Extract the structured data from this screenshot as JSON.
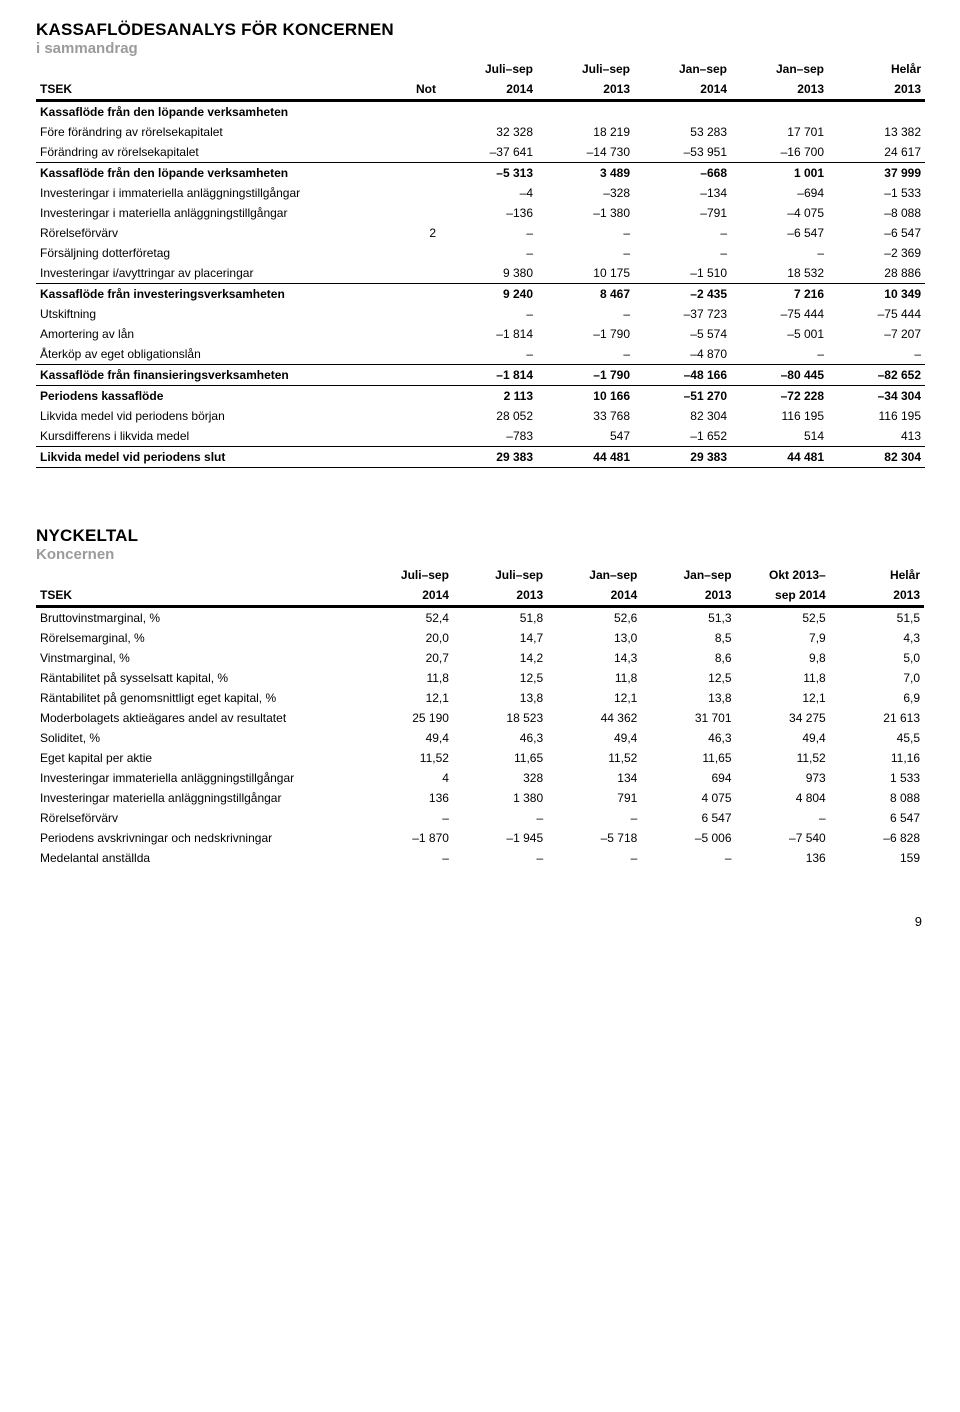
{
  "page_number": "9",
  "colors": {
    "text": "#000000",
    "muted": "#9b9b9b",
    "background": "#ffffff",
    "rule": "#000000"
  },
  "table1": {
    "title": "KASSAFLÖDESANALYS FÖR KONCERNEN",
    "subtitle": "i sammandrag",
    "header": {
      "tsek": "TSEK",
      "not": "Not",
      "c1a": "Juli–sep",
      "c1b": "2014",
      "c2a": "Juli–sep",
      "c2b": "2013",
      "c3a": "Jan–sep",
      "c3b": "2014",
      "c4a": "Jan–sep",
      "c4b": "2013",
      "c5a": "Helår",
      "c5b": "2013"
    },
    "rows": [
      {
        "label": "Kassaflöde från den löpande verksamheten",
        "not": "",
        "v": [
          "",
          "",
          "",
          "",
          ""
        ],
        "bold": true,
        "rule": "none"
      },
      {
        "label": "Före förändring av rörelsekapitalet",
        "not": "",
        "v": [
          "32 328",
          "18 219",
          "53 283",
          "17 701",
          "13 382"
        ],
        "bold": false,
        "rule": "none"
      },
      {
        "label": "Förändring av rörelsekapitalet",
        "not": "",
        "v": [
          "–37 641",
          "–14 730",
          "–53 951",
          "–16 700",
          "24 617"
        ],
        "bold": false,
        "rule": "thin"
      },
      {
        "label": "Kassaflöde från den löpande verksamheten",
        "not": "",
        "v": [
          "–5 313",
          "3 489",
          "–668",
          "1 001",
          "37 999"
        ],
        "bold": true,
        "rule": "none"
      },
      {
        "label": "Investeringar i immateriella anläggningstillgångar",
        "not": "",
        "v": [
          "–4",
          "–328",
          "–134",
          "–694",
          "–1 533"
        ],
        "bold": false,
        "rule": "none"
      },
      {
        "label": "Investeringar i materiella anläggningstillgångar",
        "not": "",
        "v": [
          "–136",
          "–1 380",
          "–791",
          "–4 075",
          "–8 088"
        ],
        "bold": false,
        "rule": "none"
      },
      {
        "label": "Rörelseförvärv",
        "not": "2",
        "v": [
          "–",
          "–",
          "–",
          "–6 547",
          "–6 547"
        ],
        "bold": false,
        "rule": "none"
      },
      {
        "label": "Försäljning dotterföretag",
        "not": "",
        "v": [
          "–",
          "–",
          "–",
          "–",
          "–2 369"
        ],
        "bold": false,
        "rule": "none"
      },
      {
        "label": "Investeringar i/avyttringar av placeringar",
        "not": "",
        "v": [
          "9 380",
          "10 175",
          "–1 510",
          "18 532",
          "28 886"
        ],
        "bold": false,
        "rule": "thin"
      },
      {
        "label": "Kassaflöde från investeringsverksamheten",
        "not": "",
        "v": [
          "9 240",
          "8 467",
          "–2 435",
          "7 216",
          "10 349"
        ],
        "bold": true,
        "rule": "none"
      },
      {
        "label": "Utskiftning",
        "not": "",
        "v": [
          "–",
          "–",
          "–37 723",
          "–75 444",
          "–75 444"
        ],
        "bold": false,
        "rule": "none"
      },
      {
        "label": "Amortering av lån",
        "not": "",
        "v": [
          "–1 814",
          "–1 790",
          "–5 574",
          "–5 001",
          "–7 207"
        ],
        "bold": false,
        "rule": "none"
      },
      {
        "label": "Återköp av eget obligationslån",
        "not": "",
        "v": [
          "–",
          "–",
          "–4 870",
          "–",
          "–"
        ],
        "bold": false,
        "rule": "thin"
      },
      {
        "label": "Kassaflöde från finansieringsverksamheten",
        "not": "",
        "v": [
          "–1 814",
          "–1 790",
          "–48 166",
          "–80 445",
          "–82 652"
        ],
        "bold": true,
        "rule": "thin"
      },
      {
        "label": "Periodens kassaflöde",
        "not": "",
        "v": [
          "2 113",
          "10 166",
          "–51 270",
          "–72 228",
          "–34 304"
        ],
        "bold": true,
        "rule": "none"
      },
      {
        "label": "Likvida medel vid periodens början",
        "not": "",
        "v": [
          "28 052",
          "33 768",
          "82 304",
          "116 195",
          "116 195"
        ],
        "bold": false,
        "rule": "none"
      },
      {
        "label": "Kursdifferens i likvida medel",
        "not": "",
        "v": [
          "–783",
          "547",
          "–1 652",
          "514",
          "413"
        ],
        "bold": false,
        "rule": "thin"
      },
      {
        "label": "Likvida medel vid periodens slut",
        "not": "",
        "v": [
          "29 383",
          "44 481",
          "29 383",
          "44 481",
          "82 304"
        ],
        "bold": true,
        "rule": "thin"
      }
    ]
  },
  "table2": {
    "title": "NYCKELTAL",
    "subtitle": "Koncernen",
    "header": {
      "tsek": "TSEK",
      "c1a": "Juli–sep",
      "c1b": "2014",
      "c2a": "Juli–sep",
      "c2b": "2013",
      "c3a": "Jan–sep",
      "c3b": "2014",
      "c4a": "Jan–sep",
      "c4b": "2013",
      "c5a": "Okt 2013–",
      "c5b": "sep 2014",
      "c6a": "Helår",
      "c6b": "2013"
    },
    "rows": [
      {
        "label": "Bruttovinstmarginal, %",
        "v": [
          "52,4",
          "51,8",
          "52,6",
          "51,3",
          "52,5",
          "51,5"
        ]
      },
      {
        "label": "Rörelsemarginal, %",
        "v": [
          "20,0",
          "14,7",
          "13,0",
          "8,5",
          "7,9",
          "4,3"
        ]
      },
      {
        "label": "Vinstmarginal, %",
        "v": [
          "20,7",
          "14,2",
          "14,3",
          "8,6",
          "9,8",
          "5,0"
        ]
      },
      {
        "label": "Räntabilitet på sysselsatt kapital, %",
        "v": [
          "11,8",
          "12,5",
          "11,8",
          "12,5",
          "11,8",
          "7,0"
        ]
      },
      {
        "label": "Räntabilitet på genomsnittligt eget kapital, %",
        "v": [
          "12,1",
          "13,8",
          "12,1",
          "13,8",
          "12,1",
          "6,9"
        ]
      },
      {
        "label": "Moderbolagets aktieägares andel av resultatet",
        "v": [
          "25 190",
          "18 523",
          "44 362",
          "31 701",
          "34 275",
          "21 613"
        ]
      },
      {
        "label": "Soliditet, %",
        "v": [
          "49,4",
          "46,3",
          "49,4",
          "46,3",
          "49,4",
          "45,5"
        ]
      },
      {
        "label": "Eget kapital per aktie",
        "v": [
          "11,52",
          "11,65",
          "11,52",
          "11,65",
          "11,52",
          "11,16"
        ]
      },
      {
        "label": "Investeringar immateriella anläggningstillgångar",
        "v": [
          "4",
          "328",
          "134",
          "694",
          "973",
          "1 533"
        ]
      },
      {
        "label": "Investeringar materiella anläggningstillgångar",
        "v": [
          "136",
          "1 380",
          "791",
          "4 075",
          "4 804",
          "8 088"
        ]
      },
      {
        "label": "Rörelseförvärv",
        "v": [
          "–",
          "–",
          "–",
          "6 547",
          "–",
          "6 547"
        ]
      },
      {
        "label": "Periodens avskrivningar och nedskrivningar",
        "v": [
          "–1 870",
          "–1 945",
          "–5 718",
          "–5 006",
          "–7 540",
          "–6 828"
        ]
      },
      {
        "label": "Medelantal anställda",
        "v": [
          "–",
          "–",
          "–",
          "–",
          "136",
          "159"
        ]
      }
    ]
  }
}
